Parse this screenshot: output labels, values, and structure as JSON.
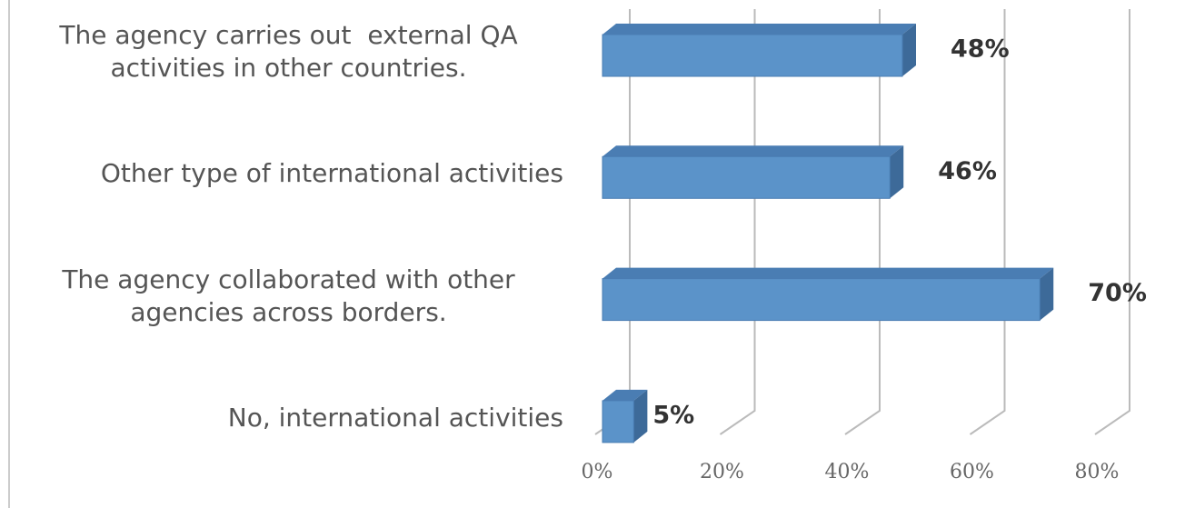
{
  "chart_data": {
    "type": "bar",
    "orientation": "horizontal",
    "categories": [
      "The agency carries out  external QA activities in other countries.",
      "Other type of international activities",
      "The agency collaborated with other agencies across borders.",
      "No, international activities"
    ],
    "values": [
      48,
      46,
      70,
      5
    ],
    "value_labels": [
      "48%",
      "46%",
      "70%",
      "5%"
    ],
    "color": "#5b93c9",
    "xlim": [
      0,
      80
    ],
    "xticks": [
      {
        "value": 0,
        "label": "0%"
      },
      {
        "value": 20,
        "label": "20%"
      },
      {
        "value": 40,
        "label": "40%"
      },
      {
        "value": 60,
        "label": "60%"
      },
      {
        "value": 80,
        "label": "80%"
      }
    ],
    "grid": true
  }
}
